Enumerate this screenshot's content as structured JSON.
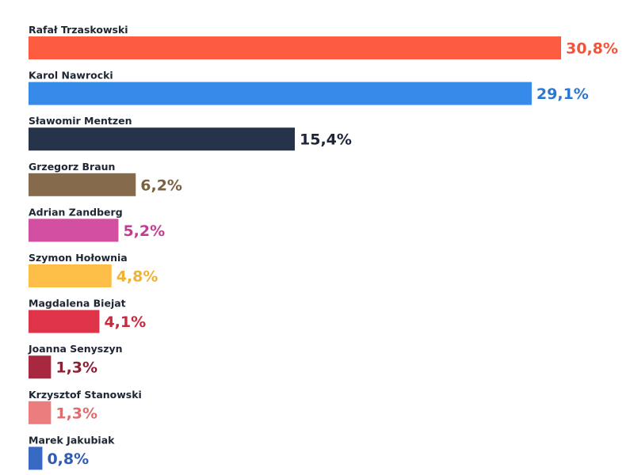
{
  "chart_data": {
    "type": "bar",
    "orientation": "horizontal",
    "title": "",
    "xlabel": "",
    "ylabel": "",
    "xlim": [
      0,
      30.8
    ],
    "grid": false,
    "legend": "none",
    "categories": [
      "Rafał Trzaskowski",
      "Karol Nawrocki",
      "Sławomir Mentzen",
      "Grzegorz Braun",
      "Adrian Zandberg",
      "Szymon Hołownia",
      "Magdalena Biejat",
      "Joanna Senyszyn",
      "Krzysztof Stanowski",
      "Marek Jakubiak"
    ],
    "values": [
      30.8,
      29.1,
      15.4,
      6.2,
      5.2,
      4.8,
      4.1,
      1.3,
      1.3,
      0.8
    ],
    "value_labels": [
      "30,8%",
      "29,1%",
      "15,4%",
      "6,2%",
      "5,2%",
      "4,8%",
      "4,1%",
      "1,3%",
      "1,3%",
      "0,8%"
    ],
    "bar_colors": [
      "#fe5c40",
      "#358aea",
      "#26344b",
      "#856b4c",
      "#d24fa1",
      "#fcbe46",
      "#df3349",
      "#a8283f",
      "#ec7d7f",
      "#386ac3"
    ],
    "label_colors": [
      "#f05539",
      "#2a78d2",
      "#1c2638",
      "#7a6241",
      "#c03f92",
      "#f0b232",
      "#c9293d",
      "#8e1f35",
      "#e36b6e",
      "#2f5cb2"
    ]
  }
}
